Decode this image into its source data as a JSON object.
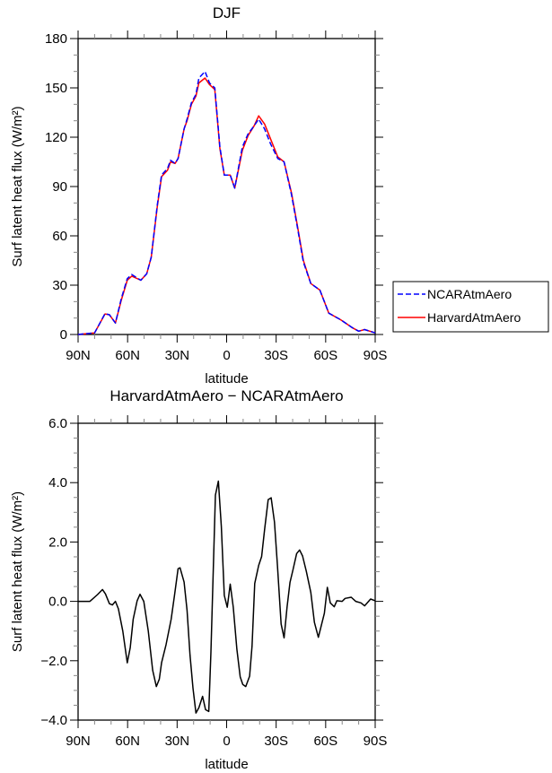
{
  "colors": {
    "ncar": "#0000ff",
    "harvard": "#ff0000",
    "diff": "#000000"
  },
  "chart_data": [
    {
      "type": "line",
      "title": "DJF",
      "xlabel": "latitude",
      "ylabel": "Surf latent heat flux (W/m²)",
      "xlim": [
        90,
        -90
      ],
      "ylim": [
        0,
        180
      ],
      "xticks": [
        90,
        60,
        30,
        0,
        -30,
        -60,
        -90
      ],
      "xtick_labels": [
        "90N",
        "60N",
        "30N",
        "0",
        "30S",
        "60S",
        "90S"
      ],
      "yticks": [
        0,
        30,
        60,
        90,
        120,
        150,
        180
      ],
      "ytick_labels": [
        "0",
        "30",
        "60",
        "90",
        "120",
        "150",
        "180"
      ],
      "legend": {
        "placement": "right",
        "entries": [
          "NCARAtmAero",
          "HarvardAtmAero"
        ]
      },
      "x": [
        90,
        80,
        73.7,
        71,
        67.4,
        63.8,
        60.2,
        57.5,
        52,
        48.4,
        45.7,
        42,
        39.4,
        35.8,
        34,
        31.2,
        29.4,
        25.8,
        24,
        21.3,
        18.6,
        16.8,
        13.1,
        10.4,
        7.2,
        4.1,
        1.4,
        -2.2,
        -4.9,
        -9.5,
        -13,
        -16.7,
        -19.4,
        -23,
        -26.6,
        -31,
        -34.8,
        -39.3,
        -42.9,
        -46.5,
        -51,
        -56.5,
        -61.9,
        -69,
        -76.4,
        -80,
        -83.6,
        -90
      ],
      "series": [
        {
          "name": "NCARAtmAero",
          "style": "dashed",
          "values": [
            0,
            1,
            12.7,
            12,
            7,
            22,
            34,
            36.5,
            33,
            37,
            47,
            79,
            97,
            101,
            106,
            104,
            107,
            125,
            131,
            141,
            146,
            156,
            160,
            153,
            150,
            114,
            97,
            97,
            89,
            114,
            122,
            127,
            131,
            125,
            116,
            107,
            105,
            85,
            65,
            44,
            31,
            27,
            13,
            9,
            4,
            2,
            3,
            1
          ]
        },
        {
          "name": "HarvardAtmAero",
          "style": "solid",
          "values": [
            0,
            1,
            12.5,
            12,
            7,
            21,
            33,
            35.5,
            33,
            37,
            47,
            78,
            96,
            100,
            105,
            104,
            107,
            125,
            130,
            140,
            145,
            153,
            156,
            152,
            149,
            113,
            97,
            97,
            89,
            112,
            121,
            127,
            133,
            128,
            119,
            108,
            105,
            86,
            66,
            45,
            31,
            27,
            13,
            9,
            4,
            2,
            3,
            1
          ]
        }
      ]
    },
    {
      "type": "line",
      "title": "HarvardAtmAero − NCARAtmAero",
      "xlabel": "latitude",
      "ylabel": "Surf latent heat flux (W/m²)",
      "xlim": [
        90,
        -90
      ],
      "ylim": [
        -4,
        6
      ],
      "xticks": [
        90,
        60,
        30,
        0,
        -30,
        -60,
        -90
      ],
      "xtick_labels": [
        "90N",
        "60N",
        "30N",
        "0",
        "30S",
        "60S",
        "90S"
      ],
      "yticks": [
        -4,
        -2,
        0,
        2,
        4,
        6
      ],
      "ytick_labels": [
        "−4.0",
        "−2.0",
        "0.0",
        "2.0",
        "4.0",
        "6.0"
      ],
      "x": [
        90,
        82.8,
        78.2,
        75.2,
        73.4,
        71,
        69.2,
        67.4,
        65.6,
        62.9,
        60.2,
        58.4,
        56.6,
        54.2,
        52.5,
        50.2,
        47.5,
        44.8,
        42.6,
        40.8,
        39.4,
        36.7,
        33.6,
        31.6,
        29.4,
        28.2,
        25.8,
        24,
        22.2,
        20.4,
        18.6,
        16.8,
        14.6,
        12.8,
        10.8,
        9.5,
        6.8,
        5,
        3.2,
        1.4,
        -0.4,
        -2.2,
        -4,
        -6.2,
        -8.2,
        -9.8,
        -11.6,
        -13.9,
        -15.4,
        -17,
        -19.4,
        -21.2,
        -23,
        -25.2,
        -27,
        -29,
        -30.8,
        -33,
        -34.8,
        -36.6,
        -38.4,
        -40.2,
        -42.4,
        -44.2,
        -46,
        -48.3,
        -51,
        -53.2,
        -55.6,
        -59.2,
        -61,
        -62.8,
        -65.2,
        -66.8,
        -70,
        -71.8,
        -75.5,
        -78.2,
        -81.4,
        -83.6,
        -87.2,
        -90
      ],
      "series": [
        {
          "name": "HarvardAtmAero - NCARAtmAero",
          "style": "solid",
          "values": [
            0,
            0,
            0.23,
            0.4,
            0.25,
            -0.08,
            -0.12,
            0,
            -0.25,
            -1.0,
            -2.07,
            -1.56,
            -0.6,
            0.02,
            0.24,
            0,
            -1.0,
            -2.32,
            -2.87,
            -2.62,
            -2.07,
            -1.46,
            -0.6,
            0.2,
            1.1,
            1.13,
            0.65,
            -0.3,
            -1.81,
            -2.92,
            -3.76,
            -3.58,
            -3.2,
            -3.65,
            -3.71,
            -1.71,
            3.58,
            4.05,
            2.52,
            0.2,
            -0.2,
            0.58,
            -0.2,
            -1.61,
            -2.54,
            -2.8,
            -2.87,
            -2.52,
            -1.51,
            0.6,
            1.21,
            1.51,
            2.42,
            3.43,
            3.49,
            2.67,
            1.21,
            -0.76,
            -1.23,
            -0.2,
            0.64,
            1.06,
            1.61,
            1.73,
            1.53,
            1.01,
            0.3,
            -0.71,
            -1.21,
            -0.4,
            0.47,
            -0.05,
            -0.18,
            0.02,
            0,
            0.1,
            0.14,
            0,
            -0.05,
            -0.15,
            0.08,
            0.02
          ]
        }
      ]
    }
  ]
}
